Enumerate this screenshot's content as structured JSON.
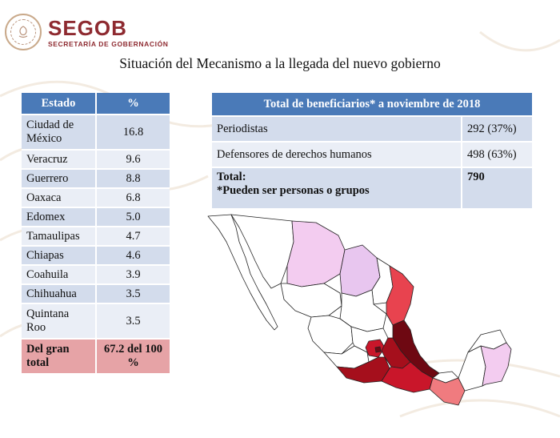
{
  "header": {
    "brand_name": "SEGOB",
    "brand_subtitle": "SECRETARÍA DE GOBERNACIÓN"
  },
  "slide_title": "Situación del Mecanismo a la llegada del nuevo gobierno",
  "state_table": {
    "columns": [
      "Estado",
      "%"
    ],
    "rows": [
      {
        "state": "Ciudad de México",
        "pct": "16.8"
      },
      {
        "state": "Veracruz",
        "pct": "9.6"
      },
      {
        "state": "Guerrero",
        "pct": "8.8"
      },
      {
        "state": "Oaxaca",
        "pct": "6.8"
      },
      {
        "state": "Edomex",
        "pct": "5.0"
      },
      {
        "state": "Tamaulipas",
        "pct": "4.7"
      },
      {
        "state": "Chiapas",
        "pct": "4.6"
      },
      {
        "state": "Coahuila",
        "pct": "3.9"
      },
      {
        "state": "Chihuahua",
        "pct": "3.5"
      },
      {
        "state": "Quintana Roo",
        "pct": "3.5"
      }
    ],
    "total_label": "Del gran total",
    "total_value": "67.2 del 100 %"
  },
  "beneficiaries_table": {
    "header": "Total de beneficiarios* a noviembre de 2018",
    "rows": [
      {
        "label": "Periodistas",
        "value": "292  (37%)"
      },
      {
        "label": "Defensores de derechos humanos",
        "value": "498  (63%)"
      }
    ],
    "total_label": "Total:",
    "total_note": "*Pueden ser personas o grupos",
    "total_value": "790"
  },
  "map": {
    "colors": {
      "outline": "#222222",
      "base": "#ffffff",
      "light_pink": "#f3ccf0",
      "lavender": "#e8c6ef",
      "red": "#e8434f",
      "salmon": "#f07b7f",
      "dark_red": "#a50f1c",
      "maroon": "#6e0812",
      "crimson": "#c9162a"
    }
  }
}
